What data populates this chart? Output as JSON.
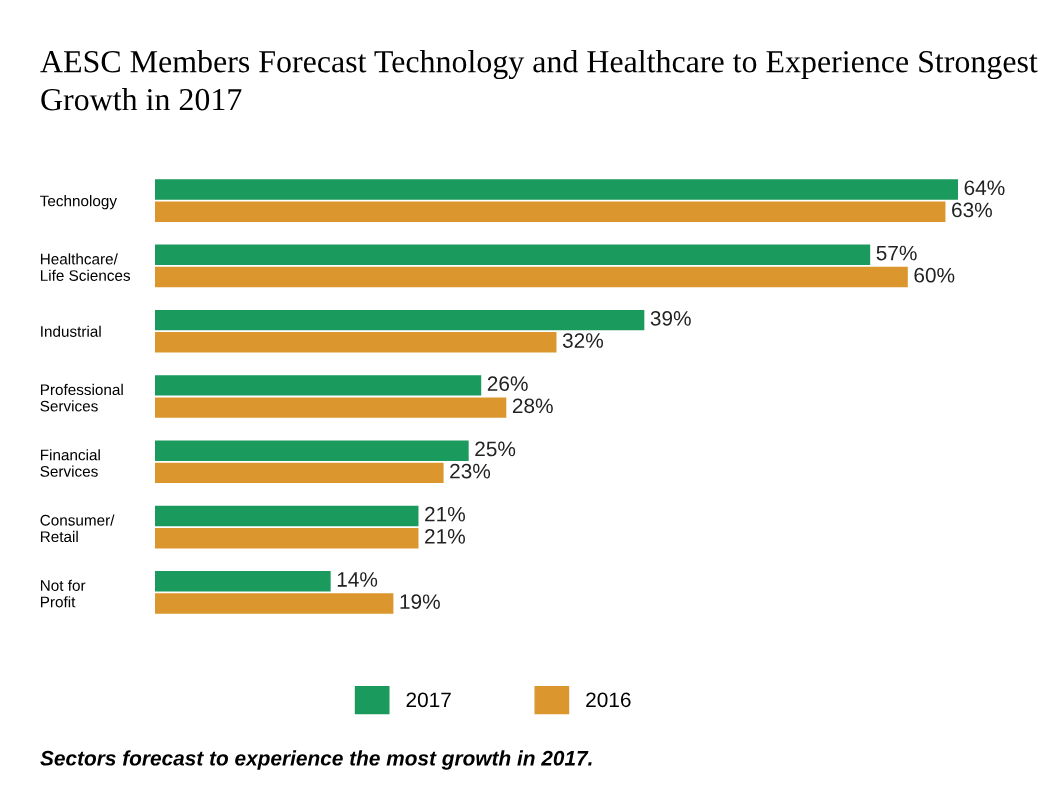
{
  "chart_data": {
    "type": "bar",
    "orientation": "horizontal",
    "title": "AESC Members Forecast Technology and Healthcare to Experience Strongest Growth in 2017",
    "categories": [
      "Technology",
      "Healthcare/\nLife Sciences",
      "Industrial",
      "Professional\nServices",
      "Financial\nServices",
      "Consumer/\nRetail",
      "Not for\nProfit"
    ],
    "series": [
      {
        "name": "2017",
        "color": "#1a9a5c",
        "values": [
          64,
          57,
          39,
          26,
          25,
          21,
          14
        ],
        "value_labels": [
          "64%",
          "57%",
          "39%",
          "26%",
          "25%",
          "21%",
          "14%"
        ]
      },
      {
        "name": "2016",
        "color": "#dc962e",
        "values": [
          63,
          60,
          32,
          28,
          23,
          21,
          19
        ],
        "value_labels": [
          "63%",
          "60%",
          "32%",
          "28%",
          "23%",
          "21%",
          "19%"
        ]
      }
    ],
    "tick_labels": "y",
    "legend": "bottom",
    "grid": false,
    "annotations": [
      "Sectors forecast to experience the most growth in 2017."
    ]
  }
}
